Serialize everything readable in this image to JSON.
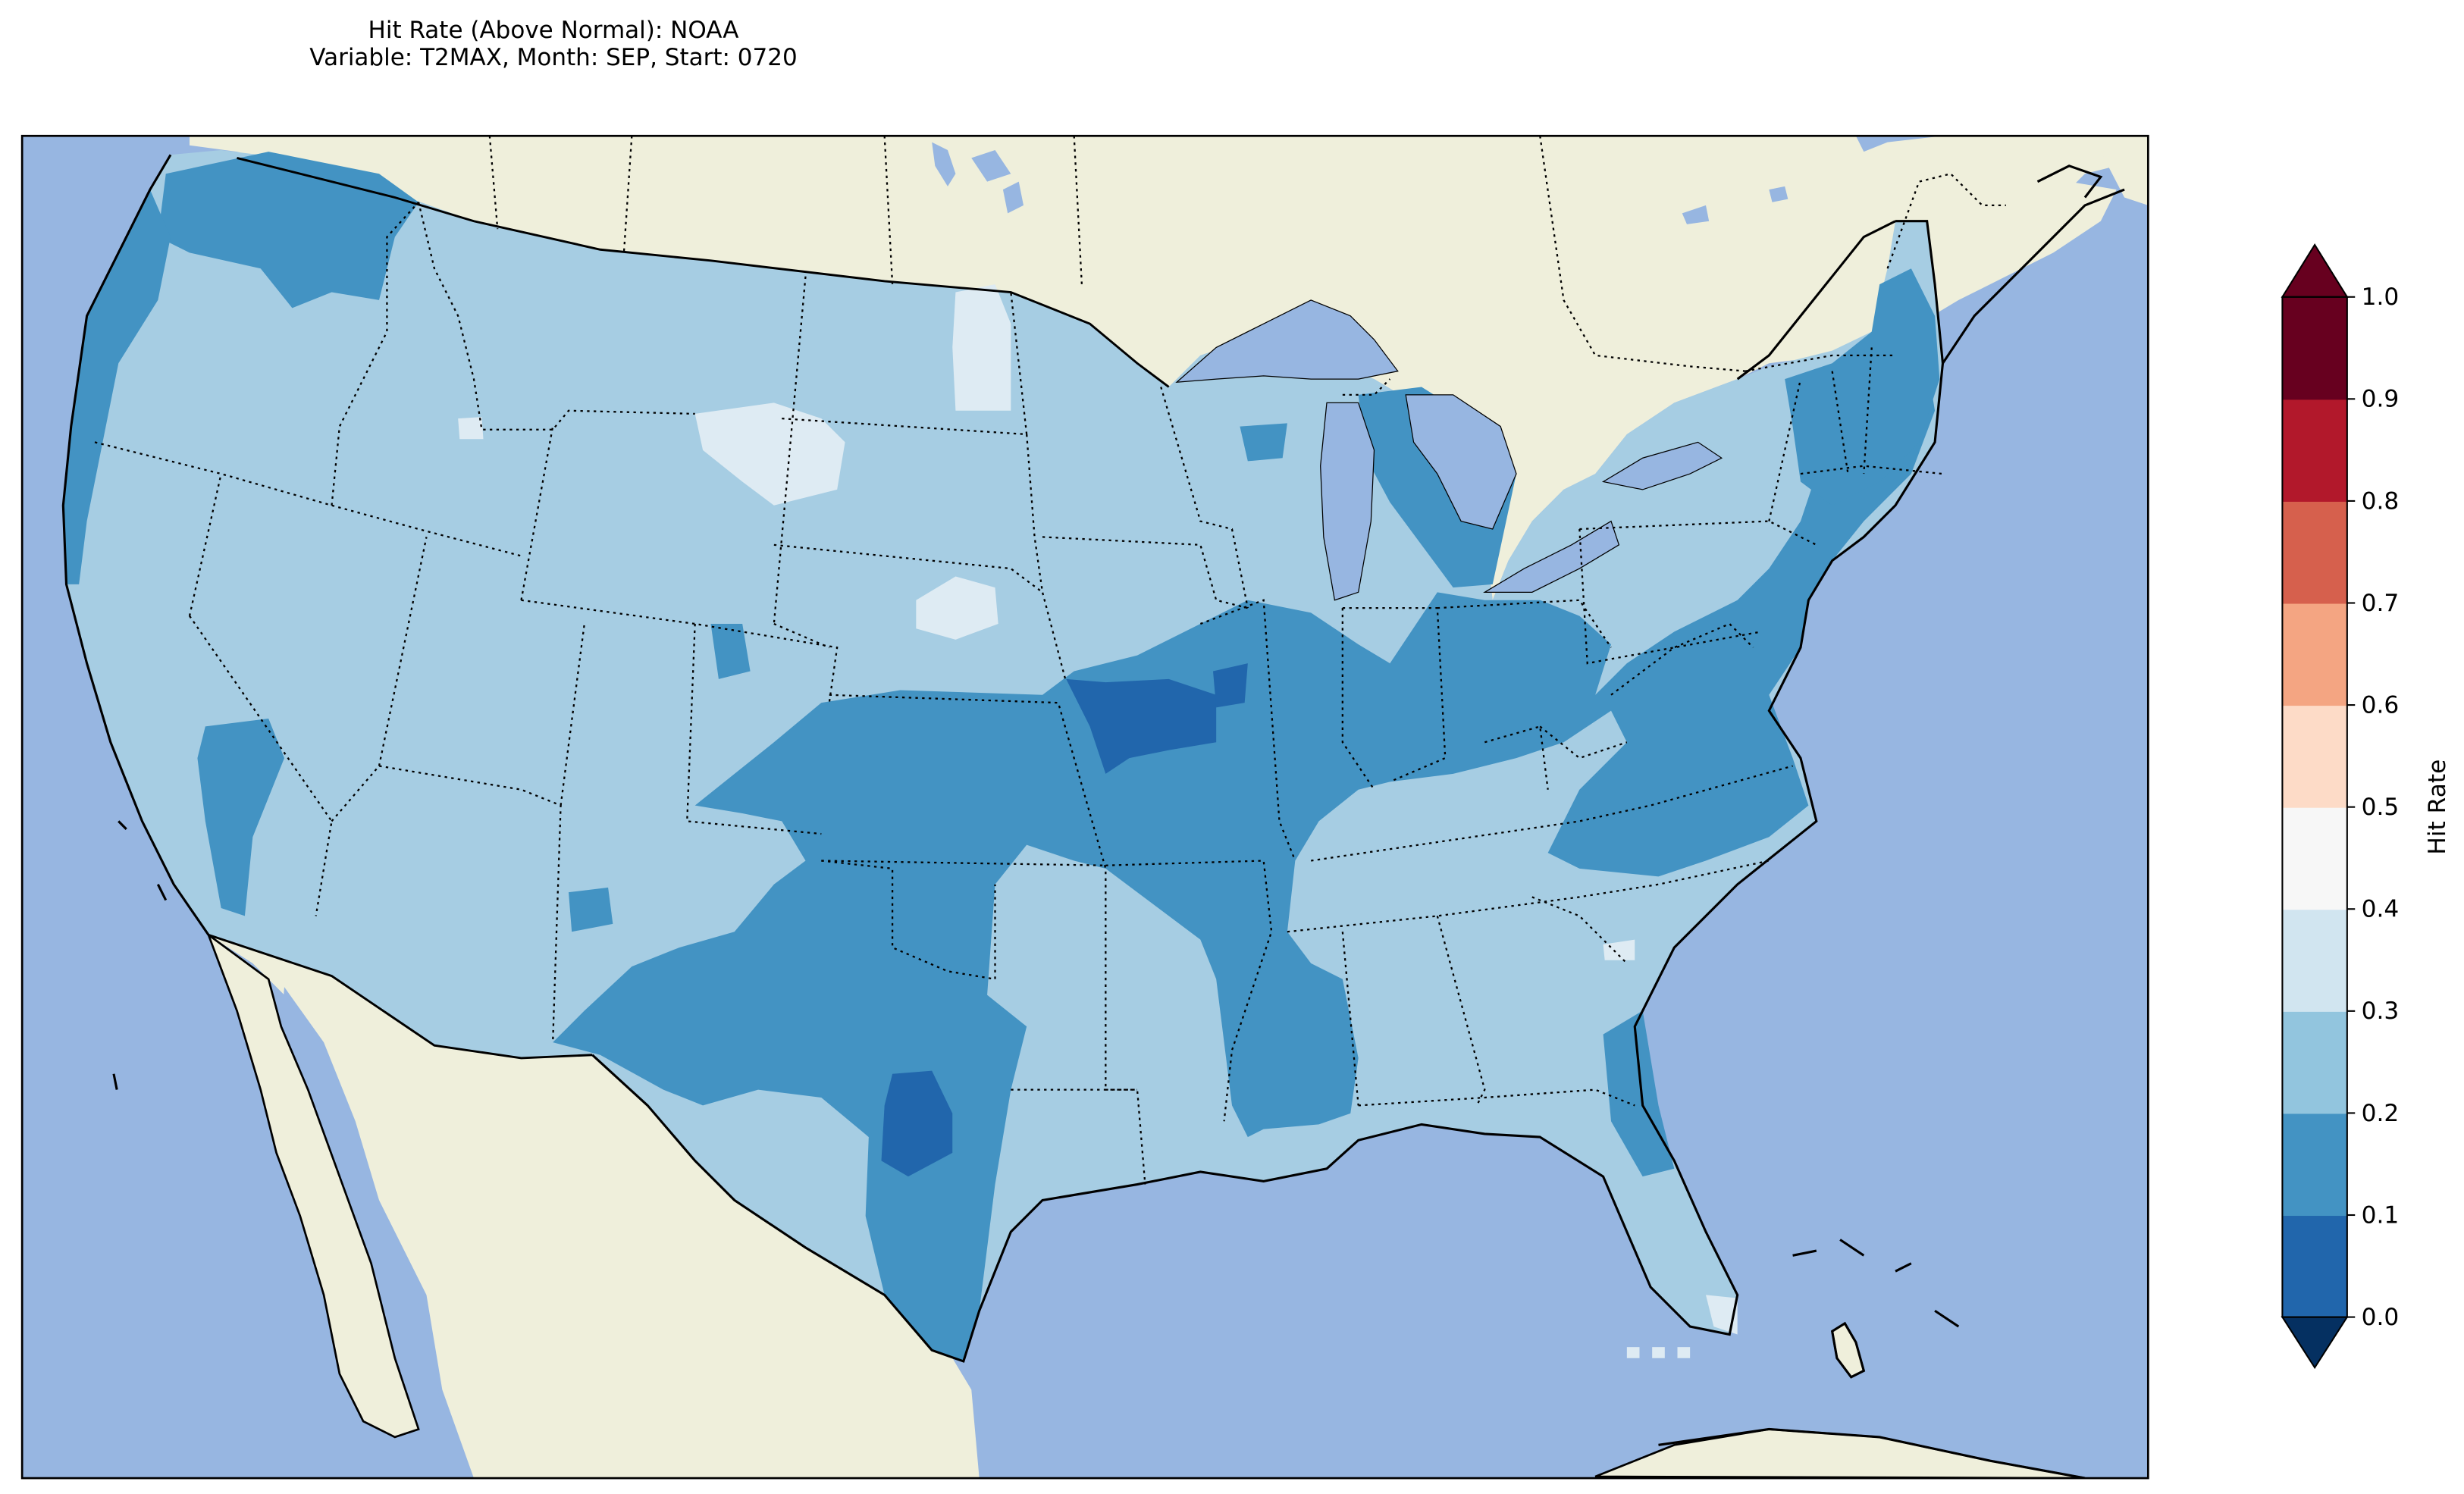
{
  "title": {
    "line1": "Hit Rate (Above Normal): NOAA",
    "line2": "Variable: T2MAX, Month: SEP, Start: 0720"
  },
  "colorbar": {
    "label": "Hit Rate",
    "ticks": [
      "0.0",
      "0.1",
      "0.2",
      "0.3",
      "0.4",
      "0.5",
      "0.6",
      "0.7",
      "0.8",
      "0.9",
      "1.0"
    ],
    "colors": [
      "#053061",
      "#2166ac",
      "#4393c3",
      "#92c5de",
      "#d1e5f0",
      "#f7f7f7",
      "#fddbc7",
      "#f4a582",
      "#d6604d",
      "#b2182b",
      "#67001f"
    ],
    "extend": "both"
  },
  "map_colors": {
    "ocean": "#97b6e1",
    "land": "#efefdb",
    "bin_0.1_0.2": "#2166ac",
    "bin_0.2_0.3": "#4393c3",
    "bin_0.3_0.4": "#a6cde3",
    "bin_0.4_0.5": "#deebf3"
  }
}
